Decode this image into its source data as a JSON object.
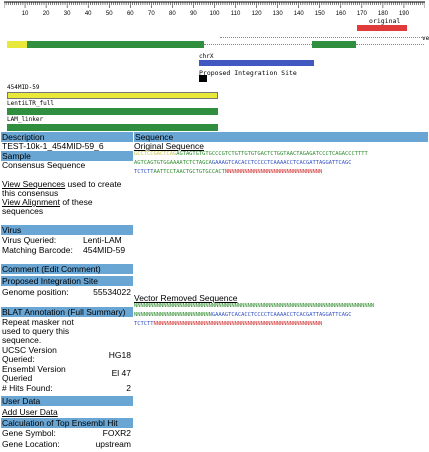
{
  "ruler": {
    "ticks": [
      "10",
      "20",
      "30",
      "40",
      "50",
      "60",
      "70",
      "80",
      "90",
      "100",
      "110",
      "120",
      "130",
      "140",
      "150",
      "160",
      "170",
      "180",
      "190"
    ]
  },
  "tracks": {
    "original_label": "original",
    "ve_label": "ve",
    "chr_label": "chrX",
    "integration_label": "Proposed Integration Site",
    "mid_label": "454MID-59",
    "ltr_label": "LentiLTR_full",
    "linker_label": "LAM_linker",
    "colors": {
      "yellow": "#e8e83a",
      "green": "#2f8f3f",
      "blue": "#4058c0",
      "red": "#e03a3a"
    }
  },
  "left": {
    "description_header": "Description",
    "description_value": "TEST-10k-1_454MID-59_6",
    "sample_header": "Sample",
    "consensus_label": "Consensus Sequence",
    "view_sequences_link": "View Sequences",
    "view_sequences_text": " used to create",
    "view_sequences_text2": "this consensus",
    "view_alignment_link": "View Alignment",
    "view_alignment_text": " of these",
    "view_alignment_text2": "sequences",
    "virus_header": "Virus",
    "virus_queried_label": "Virus Queried:",
    "virus_queried_value": "Lenti-LAM",
    "barcode_label": "Matching Barcode:",
    "barcode_value": "454MID-59",
    "comment_header": "Comment (Edit Comment)",
    "integration_header": "Proposed Integration Site",
    "genome_label": "Genome position:",
    "genome_value": "55534022",
    "blat_header": "BLAT Annotation (Full Summary)",
    "repeat_l1": "Repeat masker not",
    "repeat_l2": "used to query this",
    "repeat_l3": "sequence.",
    "ucsc_l1": "UCSC Version",
    "ucsc_l2": "Queried:",
    "ucsc_value": "HG18",
    "ensembl_l1": "Ensembl Version",
    "ensembl_l2": "Queried",
    "ensembl_value": "El 47",
    "hits_label": "# Hits Found:",
    "hits_value": "2",
    "user_header": "User Data",
    "add_user_data": "Add User Data",
    "calc_header": "Calculation of Top Ensembl Hit",
    "gene_symbol_label": "Gene Symbol:",
    "gene_symbol_value": "FOXR2",
    "gene_location_label": "Gene Location:",
    "gene_location_value": "upstream"
  },
  "right": {
    "sequence_header": "Sequence",
    "original_title": "Original Sequence",
    "orig_l1a": "GCCTCCGACTCAG",
    "orig_l1b": "AGTAGTGTGTGCCCGTCTGTTGTGTGACTCTGGTAACTAGAGATCCCTCAGACCCTTTT",
    "orig_l2a": "AGTCAGTGTGGAAAATCTCTAGCA",
    "orig_l2b": "GAAAGTCACACCTCCCCTCAAAACCTCACGATTAGGATTCAGC",
    "orig_l3a": "TCTCTT",
    "orig_l3b": "AATTCCTAACTGCTGTGCCACT",
    "orig_l3c": "NNNNNNNNNNNNNNNNNNNNNNNNNNNNNN",
    "vector_title": "Vector Removed Sequence",
    "vec_l1": "NNNNNNNNNNNNNNNNNNNNNNNNNNNNNNNNNNNNNNNNNNNNNNNNNNNNNNNNNNNNNNNNNNNNNNNNNN",
    "vec_l2a": "NNNNNNNNNNNNNNNNNNNNNNNN",
    "vec_l2b": "GAAAGTCACACCTCCCCTCAAAACCTCACGATTAGGATTCAGC",
    "vec_l3a": "TCTCTT",
    "vec_l3b": "NNNNNNNNNNNNNNNNNNNNNNNNNNNNNNNNNNNNNNNNNNNNNNNNNNNN"
  }
}
